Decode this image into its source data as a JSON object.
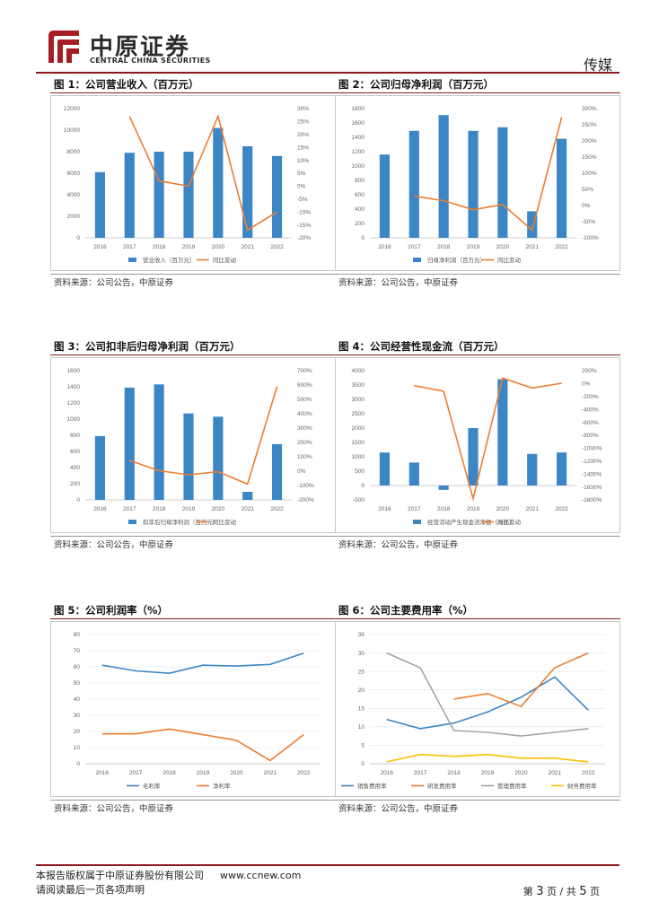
{
  "header": {
    "logo_cn": "中原证券",
    "logo_en": "CENTRAL CHINA SECURITIES",
    "section": "传媒"
  },
  "figures": [
    {
      "title": "图 1：公司营业收入（百万元）",
      "source": "资料来源：公司公告，中原证券",
      "chart_data": {
        "type": "bar+line",
        "categories": [
          "2016",
          "2017",
          "2018",
          "2019",
          "2020",
          "2021",
          "2022"
        ],
        "series": [
          {
            "name": "营业收入（百万元）",
            "type": "bar",
            "axis": "left",
            "values": [
              6100,
              7900,
              8000,
              8000,
              10200,
              8500,
              7600
            ]
          },
          {
            "name": "同比变动",
            "type": "line",
            "axis": "right",
            "values": [
              null,
              0.27,
              0.02,
              0.0,
              0.27,
              -0.17,
              -0.1
            ]
          }
        ],
        "yleft": {
          "min": 0,
          "max": 12000,
          "ticks": [
            "0",
            "2000",
            "4000",
            "6000",
            "8000",
            "10000",
            "12000"
          ]
        },
        "yright": {
          "min": -0.2,
          "max": 0.3,
          "ticks": [
            "-20%",
            "-15%",
            "-10%",
            "-5%",
            "0%",
            "5%",
            "10%",
            "15%",
            "20%",
            "25%",
            "30%"
          ]
        },
        "legend_position": "bottom"
      }
    },
    {
      "title": "图 2：公司归母净利润（百万元）",
      "source": "资料来源：公司公告，中原证券",
      "chart_data": {
        "type": "bar+line",
        "categories": [
          "2016",
          "2017",
          "2018",
          "2019",
          "2020",
          "2021",
          "2022"
        ],
        "series": [
          {
            "name": "归母净利润（百万元）",
            "type": "bar",
            "axis": "left",
            "values": [
              1160,
              1490,
              1710,
              1490,
              1540,
              370,
              1380
            ]
          },
          {
            "name": "同比变动",
            "type": "line",
            "axis": "right",
            "values": [
              null,
              0.29,
              0.15,
              -0.13,
              0.03,
              -0.76,
              2.73
            ]
          }
        ],
        "yleft": {
          "min": 0,
          "max": 1800,
          "ticks": [
            "0",
            "200",
            "400",
            "600",
            "800",
            "1000",
            "1200",
            "1400",
            "1600",
            "1800"
          ]
        },
        "yright": {
          "min": -1.0,
          "max": 3.0,
          "ticks": [
            "-100%",
            "-50%",
            "0%",
            "50%",
            "100%",
            "150%",
            "200%",
            "250%",
            "300%"
          ]
        },
        "legend_position": "bottom"
      }
    },
    {
      "title": "图 3：公司扣非后归母净利润（百万元）",
      "source": "资料来源：公司公告，中原证券",
      "chart_data": {
        "type": "bar+line",
        "categories": [
          "2016",
          "2017",
          "2018",
          "2019",
          "2020",
          "2021",
          "2022"
        ],
        "series": [
          {
            "name": "扣非后归母净利润（百万元）",
            "type": "bar",
            "axis": "left",
            "values": [
              790,
              1390,
              1430,
              1070,
              1030,
              100,
              690
            ]
          },
          {
            "name": "同比变动",
            "type": "line",
            "axis": "right",
            "values": [
              null,
              0.75,
              0.03,
              -0.25,
              -0.04,
              -0.9,
              5.9
            ]
          }
        ],
        "yleft": {
          "min": 0,
          "max": 1600,
          "ticks": [
            "0",
            "200",
            "400",
            "600",
            "800",
            "1000",
            "1200",
            "1400",
            "1600"
          ]
        },
        "yright": {
          "min": -2.0,
          "max": 7.0,
          "ticks": [
            "-200%",
            "-100%",
            "0%",
            "100%",
            "200%",
            "300%",
            "400%",
            "500%",
            "600%",
            "700%"
          ]
        },
        "legend_position": "bottom"
      }
    },
    {
      "title": "图 4：公司经营性现金流（百万元）",
      "source": "资料来源：公司公告，中原证券",
      "chart_data": {
        "type": "bar+line",
        "categories": [
          "2016",
          "2017",
          "2018",
          "2019",
          "2020",
          "2021",
          "2022"
        ],
        "series": [
          {
            "name": "经营活动产生现金流净额（万元）",
            "type": "bar",
            "axis": "left",
            "values": [
              1150,
              800,
              -150,
              2000,
              3700,
              1100,
              1150
            ]
          },
          {
            "name": "同比变动",
            "type": "line",
            "axis": "right",
            "values": [
              null,
              -0.3,
              -1.19,
              -17.8,
              0.85,
              -0.7,
              0.05
            ]
          }
        ],
        "yleft": {
          "min": -500,
          "max": 4000,
          "ticks": [
            "-500",
            "0",
            "500",
            "1000",
            "1500",
            "2000",
            "2500",
            "3000",
            "3500",
            "4000"
          ]
        },
        "yright": {
          "min": -18.0,
          "max": 2.0,
          "ticks": [
            "-1800%",
            "-1600%",
            "-1400%",
            "-1200%",
            "-1000%",
            "-800%",
            "-600%",
            "-400%",
            "-200%",
            "0%",
            "200%"
          ]
        },
        "legend_position": "bottom"
      }
    },
    {
      "title": "图 5：公司利润率（%）",
      "source": "资料来源：公司公告，中原证券",
      "chart_data": {
        "type": "line",
        "categories": [
          "2016",
          "2017",
          "2018",
          "2019",
          "2020",
          "2021",
          "2022"
        ],
        "series": [
          {
            "name": "毛利率",
            "values": [
              61.0,
              57.5,
              56.0,
              61.0,
              60.5,
              61.5,
              68.5
            ],
            "color": "#3d86c6"
          },
          {
            "name": "净利率",
            "values": [
              18.5,
              18.5,
              21.5,
              18.0,
              14.5,
              2.0,
              18.0
            ],
            "color": "#ed7d31"
          }
        ],
        "yleft": {
          "min": 0,
          "max": 80,
          "ticks": [
            "0",
            "10",
            "20",
            "30",
            "40",
            "50",
            "60",
            "70",
            "80"
          ]
        },
        "legend_position": "bottom"
      }
    },
    {
      "title": "图 6：公司主要费用率（%）",
      "source": "资料来源：公司公告，中原证券",
      "chart_data": {
        "type": "line",
        "categories": [
          "2016",
          "2017",
          "2018",
          "2019",
          "2020",
          "2021",
          "2022"
        ],
        "series": [
          {
            "name": "销售费用率",
            "values": [
              12.0,
              9.5,
              11.0,
              14.0,
              18.0,
              23.5,
              14.5
            ],
            "color": "#3d86c6"
          },
          {
            "name": "研发费用率",
            "values": [
              null,
              null,
              17.5,
              19.0,
              15.5,
              26.0,
              30.0
            ],
            "color": "#ed7d31"
          },
          {
            "name": "管理费用率",
            "values": [
              30.0,
              26.0,
              9.0,
              8.5,
              7.5,
              8.5,
              9.5
            ],
            "color": "#a5a5a5"
          },
          {
            "name": "财务费用率",
            "values": [
              0.5,
              2.5,
              2.0,
              2.5,
              1.5,
              1.5,
              0.5
            ],
            "color": "#ffc000"
          }
        ],
        "yleft": {
          "min": 0,
          "max": 35,
          "ticks": [
            "0",
            "5",
            "10",
            "15",
            "20",
            "25",
            "30",
            "35"
          ]
        },
        "legend_position": "bottom"
      }
    }
  ],
  "colors": {
    "bar": "#3d86c6",
    "line": "#ed7d31",
    "accent": "#8b1a1a"
  },
  "footer": {
    "copyright": "本报告版权属于中原证券股份有限公司",
    "url": "www.ccnew.com",
    "disclaimer": "请阅读最后一页各项声明",
    "page_prefix": "第",
    "page_current": "3",
    "page_middle": "页 / 共",
    "page_total": "5",
    "page_suffix": "页"
  }
}
